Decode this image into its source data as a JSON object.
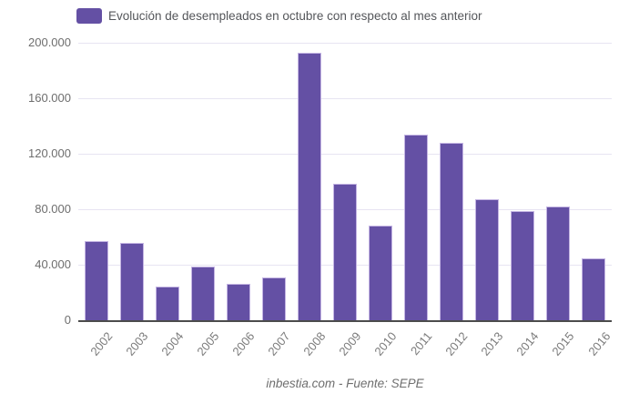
{
  "legend": {
    "label": "Evolución de desempleados en octubre con respecto al mes anterior"
  },
  "footer": {
    "text": "inbestia.com - Fuente: SEPE"
  },
  "colors": {
    "bar": "#6450a4",
    "bar_border": "#c4b5e3",
    "grid": "#e7e4f2",
    "axis": "#4c4c4c",
    "y_tick_text": "#6e6e6e",
    "x_tick_text": "#7b7b7b",
    "legend_text": "#54565a",
    "source_text": "#6e6e6e"
  },
  "chart_data": {
    "type": "bar",
    "title": "Evolución de desempleados en octubre con respecto al mes anterior",
    "categories": [
      "2002",
      "2003",
      "2004",
      "2005",
      "2006",
      "2007",
      "2008",
      "2009",
      "2010",
      "2011",
      "2012",
      "2013",
      "2014",
      "2015",
      "2016"
    ],
    "values": [
      57000,
      56000,
      24000,
      38500,
      26000,
      31000,
      192500,
      98500,
      68000,
      133500,
      128000,
      87000,
      79000,
      82000,
      44500
    ],
    "xlabel": "",
    "ylabel": "",
    "ylim": [
      0,
      200000
    ],
    "yticks": {
      "values": [
        0,
        40000,
        80000,
        120000,
        160000,
        200000
      ],
      "labels": [
        "0",
        "40.000",
        "80.000",
        "120.000",
        "160.000",
        "200.000"
      ]
    },
    "grid": true,
    "legend_position": "top",
    "source": "inbestia.com - Fuente: SEPE"
  }
}
